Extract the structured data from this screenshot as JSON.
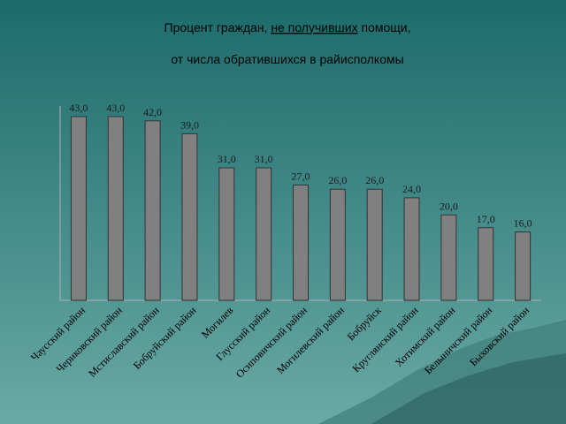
{
  "chart_data": {
    "type": "bar",
    "title_before": "Процент граждан, ",
    "title_underlined": "не получивших",
    "title_after": " помощи,",
    "subtitle": "от числа обратившихся в райисполкомы",
    "categories": [
      "Чаусский район",
      "Чериковский район",
      "Мстиславский район",
      "Бобруйский район",
      "Могилев",
      "Глусский район",
      "Осиповичский район",
      "Могилевский район",
      "Бобруйск",
      "Круглянский район",
      "Хотимский район",
      "Белыничский район",
      "Быховский район"
    ],
    "values": [
      43.0,
      43.0,
      42.0,
      39.0,
      31.0,
      31.0,
      27.0,
      26.0,
      26.0,
      24.0,
      20.0,
      17.0,
      16.0
    ],
    "value_labels": [
      "43,0",
      "43,0",
      "42,0",
      "39,0",
      "31,0",
      "31,0",
      "27,0",
      "26,0",
      "26,0",
      "24,0",
      "20,0",
      "17,0",
      "16,0"
    ],
    "color": "#808080"
  }
}
